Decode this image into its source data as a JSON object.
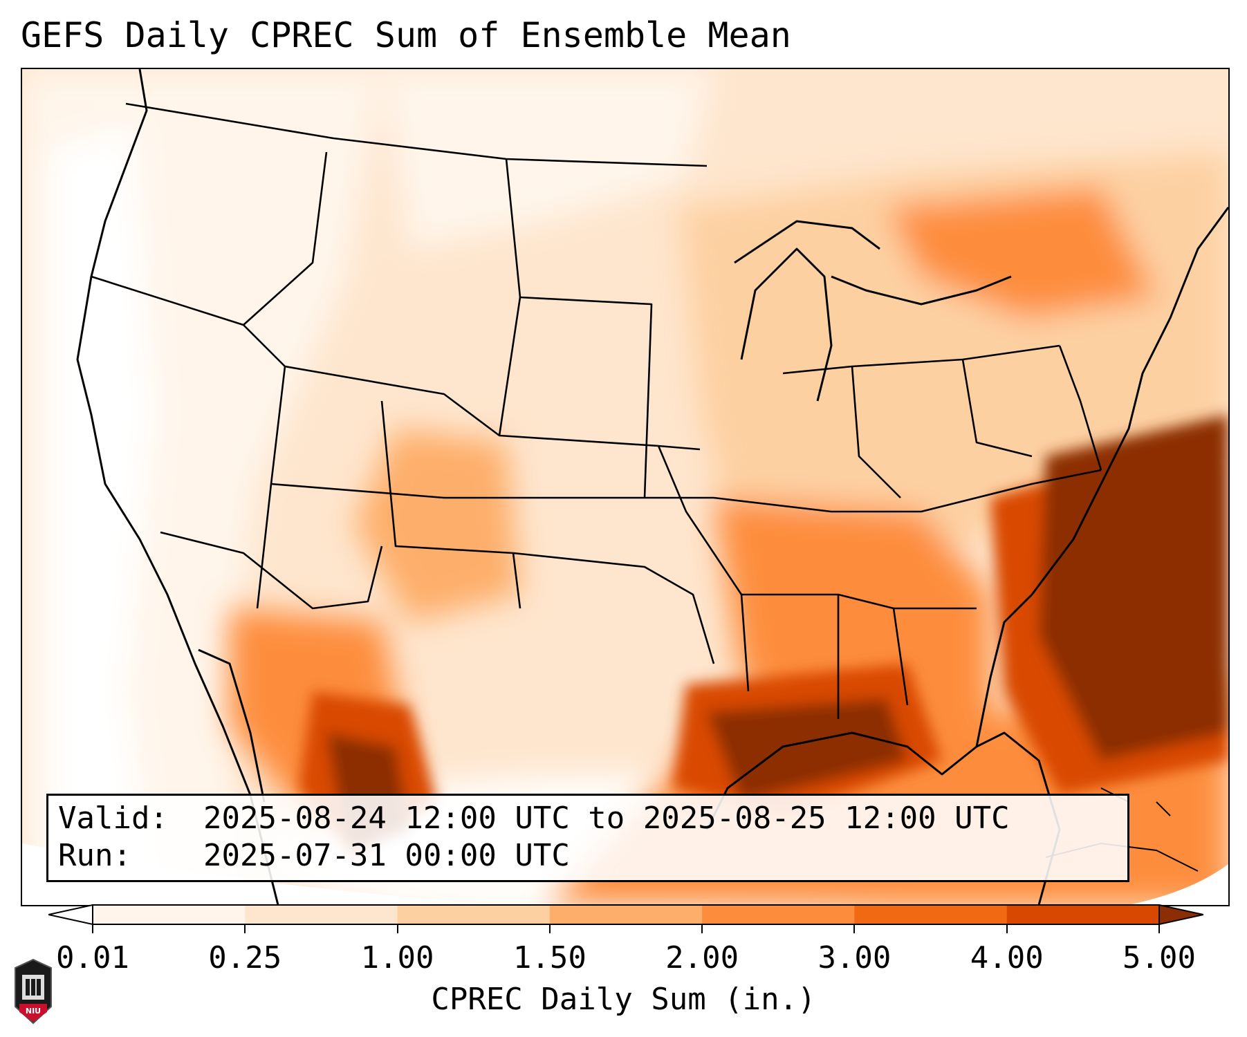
{
  "title": "GEFS Daily CPREC Sum of Ensemble Mean",
  "info": {
    "valid_label": "Valid:",
    "valid_value": "2025-08-24 12:00 UTC to 2025-08-25 12:00 UTC",
    "run_label": "Run:",
    "run_value": "2025-07-31 00:00 UTC"
  },
  "colorbar": {
    "label": "CPREC Daily Sum (in.)",
    "ticks": [
      "0.01",
      "0.25",
      "1.00",
      "1.50",
      "2.00",
      "3.00",
      "4.00",
      "5.00"
    ],
    "colors": [
      "#fff5eb",
      "#fee6ce",
      "#fdd0a2",
      "#fdae6b",
      "#fd8d3c",
      "#f16913",
      "#d94801",
      "#8c2d04"
    ],
    "under_color": "#ffffff",
    "over_color": "#8c2d04"
  },
  "logo": {
    "text": "NIU",
    "accent": "#c8102e"
  }
}
